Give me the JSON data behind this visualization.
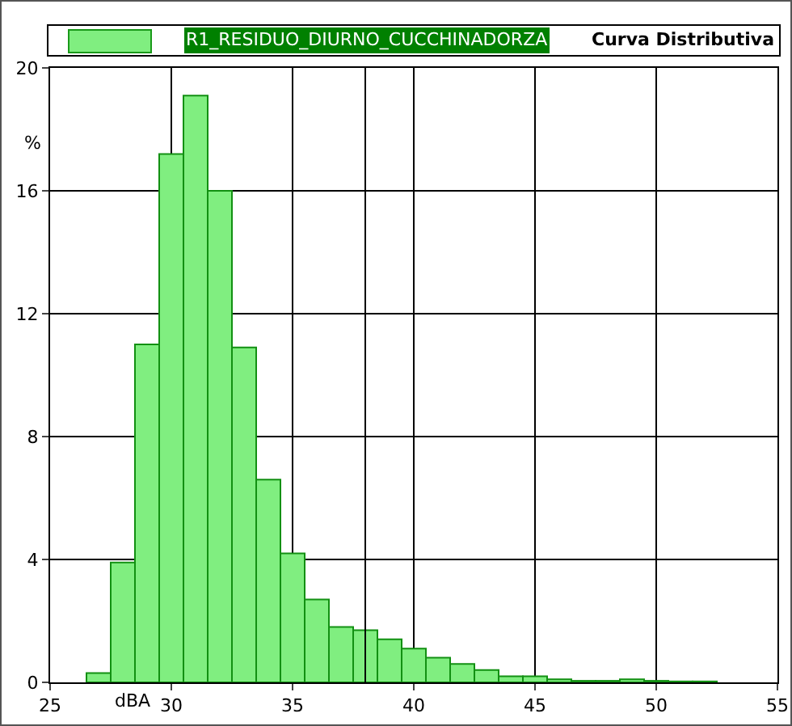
{
  "chart_data": {
    "type": "histogram",
    "title": "Curva Distributiva",
    "xlabel": "dBA",
    "ylabel": "%",
    "bins": [
      26.5,
      27.5,
      28.5,
      29.5,
      30.5,
      31.5,
      32.5,
      33.5,
      34.5,
      35.5,
      36.5,
      37.5,
      38.5,
      39.5,
      40.5,
      41.5,
      42.5,
      43.5,
      44.5,
      45.5,
      46.5,
      47.5,
      48.5,
      49.5,
      50.5,
      51.5,
      52.5
    ],
    "series": [
      {
        "name": "R1_RESIDUO_DIURNO_CUCCHINADORZA",
        "color": "#80ee80",
        "values": [
          0.3,
          3.9,
          11.0,
          17.2,
          19.1,
          16.0,
          10.9,
          6.6,
          4.2,
          2.7,
          1.8,
          1.7,
          1.4,
          1.1,
          0.8,
          0.6,
          0.4,
          0.2,
          0.2,
          0.1,
          0.05,
          0.05,
          0.1,
          0.05,
          0.03,
          0.03
        ]
      }
    ],
    "xlim": [
      25,
      55
    ],
    "xticks": [
      25,
      30,
      35,
      40,
      45,
      50,
      55
    ],
    "ylim": [
      0,
      20
    ],
    "yticks": [
      0,
      4,
      8,
      12,
      16,
      20
    ],
    "ref_lines": [
      {
        "axis": "x",
        "value": 38,
        "color": "#000000"
      }
    ],
    "grid": true,
    "legend": "top"
  }
}
